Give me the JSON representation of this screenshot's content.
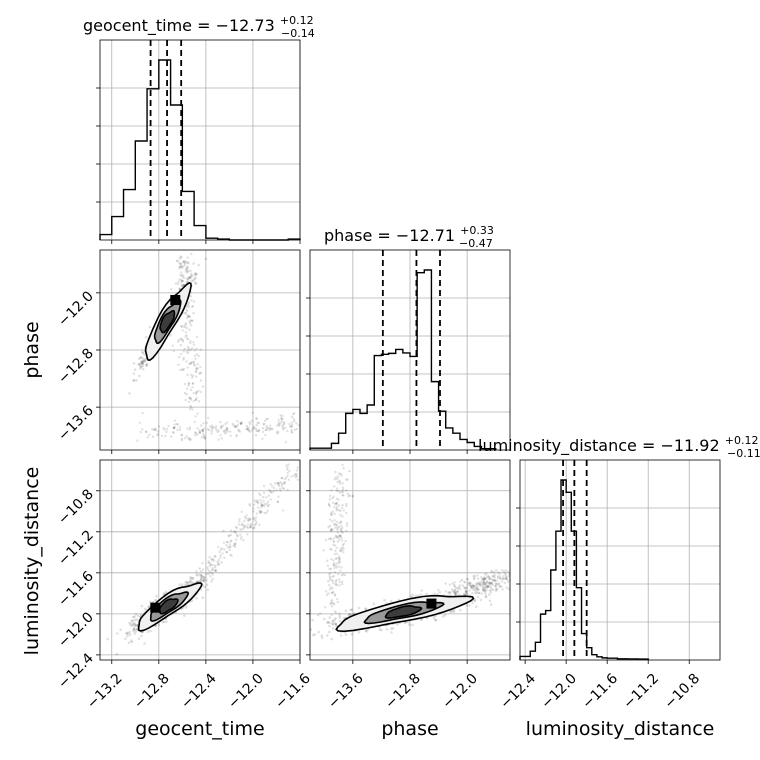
{
  "colors": {
    "ink": "#000000",
    "grid": "#b0b0b0",
    "scatter": "#000000",
    "contour_fill": [
      "#f0f0f0",
      "#9a9a9a",
      "#3c3c3c"
    ],
    "background": "#ffffff"
  },
  "chart_data": {
    "type": "corner",
    "parameters": [
      "geocent_time",
      "phase",
      "luminosity_distance"
    ],
    "axis_labels": {
      "geocent_time": "geocent_time",
      "phase": "phase",
      "luminosity_distance": "luminosity_distance"
    },
    "ranges": {
      "geocent_time": [
        -13.3,
        -11.6
      ],
      "phase": [
        -14.2,
        -11.4
      ],
      "luminosity_distance": [
        -12.45,
        -10.5
      ]
    },
    "ticks": {
      "geocent_time": [
        -13.2,
        -12.8,
        -12.4,
        -12.0,
        -11.6
      ],
      "phase": [
        -13.6,
        -12.8,
        -12.0
      ],
      "luminosity_distance": [
        -12.4,
        -12.0,
        -11.6,
        -11.2,
        -10.8
      ]
    },
    "tick_labels": {
      "geocent_time": [
        "−13.2",
        "−12.8",
        "−12.4",
        "−12.0",
        "−11.6"
      ],
      "phase": [
        "−13.6",
        "−12.8",
        "−12.0"
      ],
      "luminosity_distance": [
        "−12.4",
        "−12.0",
        "−11.6",
        "−11.2",
        "−10.8"
      ]
    },
    "grid": true,
    "titles": [
      {
        "parameter": "geocent_time",
        "text": "geocent_time = −12.73",
        "plus": "+0.12",
        "minus": "−0.14"
      },
      {
        "parameter": "phase",
        "text": "phase = −12.71",
        "plus": "+0.33",
        "minus": "−0.47"
      },
      {
        "parameter": "luminosity_distance",
        "text": "luminosity_distance = −11.92",
        "plus": "+0.12",
        "minus": "−0.11"
      }
    ],
    "quantiles": {
      "geocent_time": [
        -12.87,
        -12.73,
        -12.61
      ],
      "phase": [
        -13.18,
        -12.71,
        -12.38
      ],
      "luminosity_distance": [
        -12.03,
        -11.92,
        -11.8
      ]
    },
    "histograms": {
      "geocent_time": {
        "edges": [
          -13.3,
          -13.2,
          -13.1,
          -13.0,
          -12.9,
          -12.8,
          -12.7,
          -12.6,
          -12.5,
          -12.4,
          -12.3,
          -12.2,
          -12.1,
          -12.0,
          -11.9,
          -11.8,
          -11.7,
          -11.6
        ],
        "counts": [
          3,
          13,
          28,
          55,
          84,
          100,
          75,
          27,
          8,
          1,
          0.5,
          0,
          0,
          0,
          0,
          0,
          0.5
        ]
      },
      "phase": {
        "edges": [
          -14.2,
          -13.9,
          -13.8,
          -13.7,
          -13.6,
          -13.5,
          -13.4,
          -13.3,
          -13.2,
          -13.1,
          -13.0,
          -12.9,
          -12.8,
          -12.7,
          -12.6,
          -12.5,
          -12.4,
          -12.3,
          -12.2,
          -12.1,
          -12.0,
          -11.9,
          -11.8,
          -11.6
        ],
        "counts": [
          0.4,
          1.5,
          3.8,
          8.3,
          9.2,
          8.3,
          10.2,
          21.4,
          21.7,
          21.9,
          22.8,
          22.0,
          21.2,
          40.2,
          40.8,
          15.5,
          8.8,
          5.0,
          3.8,
          2.4,
          1.7,
          0.8,
          0.3
        ]
      },
      "luminosity_distance": {
        "edges": [
          -12.45,
          -12.35,
          -12.3,
          -12.25,
          -12.2,
          -12.15,
          -12.1,
          -12.05,
          -12.0,
          -11.95,
          -11.9,
          -11.85,
          -11.8,
          -11.75,
          -11.7,
          -11.65,
          -11.6,
          -11.5,
          -11.4,
          -11.3,
          -11.2
        ],
        "counts": [
          2,
          5,
          10,
          26,
          28,
          51,
          73,
          102,
          95,
          73,
          41,
          15,
          7,
          3,
          1.8,
          1.2,
          1.0,
          0.7,
          0.6,
          0.5
        ]
      }
    },
    "pairs": [
      {
        "x": "geocent_time",
        "y": "phase",
        "core": {
          "cx": -12.73,
          "cy": -12.4,
          "angle_deg": 60
        },
        "contours": [
          {
            "rx": 0.36,
            "ry": 0.08,
            "level": 0.9,
            "fill_index": 0
          },
          {
            "rx": 0.2,
            "ry": 0.05,
            "level": 0.6,
            "fill_index": 1
          },
          {
            "rx": 0.1,
            "ry": 0.03,
            "level": 0.3,
            "fill_index": 2
          }
        ],
        "peak": {
          "x": -12.66,
          "y": -12.1
        },
        "tails": [
          {
            "x0": -12.95,
            "y0": -13.95,
            "x1": -11.6,
            "y1": -13.85
          },
          {
            "x0": -12.5,
            "y0": -13.7,
            "x1": -12.6,
            "y1": -11.5
          }
        ]
      },
      {
        "x": "geocent_time",
        "y": "luminosity_distance",
        "core": {
          "cx": -12.72,
          "cy": -11.92,
          "angle_deg": 35
        },
        "contours": [
          {
            "rx": 0.32,
            "ry": 0.09,
            "level": 0.9,
            "fill_index": 0
          },
          {
            "rx": 0.19,
            "ry": 0.055,
            "level": 0.6,
            "fill_index": 1
          },
          {
            "rx": 0.09,
            "ry": 0.03,
            "level": 0.3,
            "fill_index": 2
          }
        ],
        "peak": {
          "x": -12.83,
          "y": -11.94
        },
        "tails": [
          {
            "x0": -12.5,
            "y0": -11.7,
            "x1": -11.65,
            "y1": -10.6
          }
        ]
      },
      {
        "x": "phase",
        "y": "luminosity_distance",
        "core": {
          "cx": -12.9,
          "cy": -11.98,
          "angle_deg": 12
        },
        "contours": [
          {
            "rx": 0.95,
            "ry": 0.1,
            "level": 0.9,
            "fill_index": 0
          },
          {
            "rx": 0.55,
            "ry": 0.06,
            "level": 0.6,
            "fill_index": 1
          },
          {
            "rx": 0.25,
            "ry": 0.03,
            "level": 0.3,
            "fill_index": 2
          }
        ],
        "peak": {
          "x": -12.5,
          "y": -11.9
        },
        "tails": [
          {
            "x0": -13.9,
            "y0": -12.0,
            "x1": -13.75,
            "y1": -10.6
          },
          {
            "x0": -12.3,
            "y0": -11.8,
            "x1": -11.4,
            "y1": -11.65
          }
        ]
      }
    ]
  }
}
